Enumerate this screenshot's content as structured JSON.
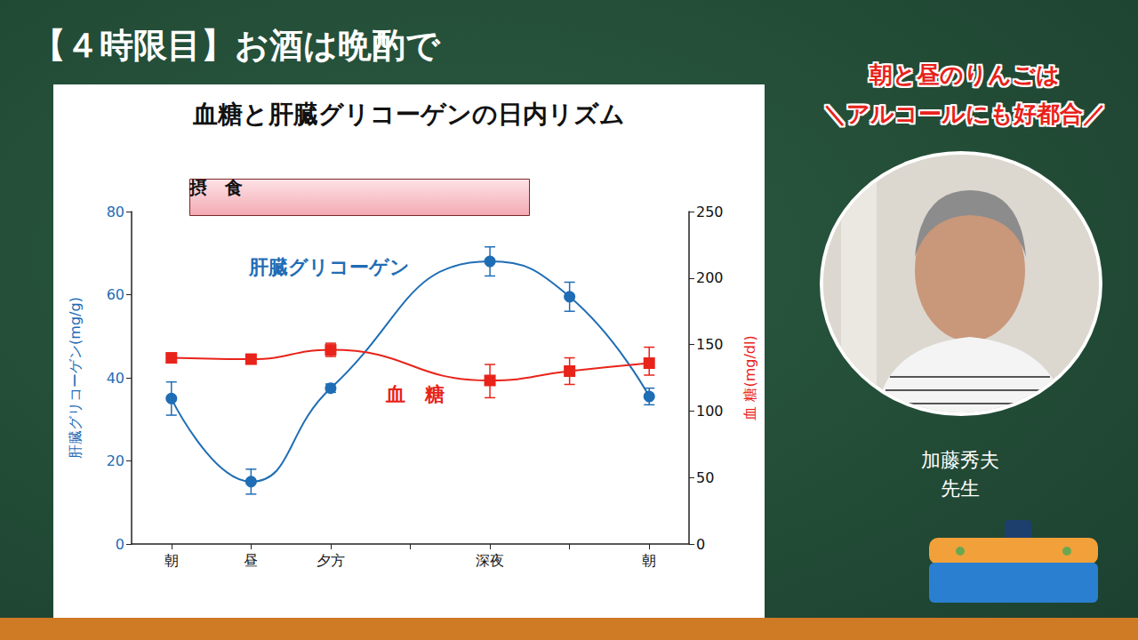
{
  "page": {
    "heading": "【４時限目】お酒は晩酌で",
    "caption": [
      "朝と昼のりんごは",
      "＼アルコールにも好都合／"
    ],
    "speaker": [
      "加藤秀夫",
      "先生"
    ]
  },
  "chart_data": {
    "type": "line",
    "title": "血糖と肝臓グリコーゲンの日内リズム",
    "annotations": [
      "摂　食"
    ],
    "categories": [
      "朝",
      "昼",
      "夕方",
      null,
      "深夜",
      null,
      "朝"
    ],
    "ylabel": "肝臓グリコーゲン(mg/g)",
    "y2label": "血 糖(mg/dl)",
    "ylim": [
      0,
      80
    ],
    "yticks": [
      0,
      20,
      40,
      60,
      80
    ],
    "y2lim": [
      0,
      250
    ],
    "y2ticks": [
      0,
      50,
      100,
      150,
      200,
      250
    ],
    "grid": false,
    "series": [
      {
        "name": "肝臓グリコーゲン",
        "color": "#1f6db5",
        "marker": "circle",
        "line_style": "solid",
        "values": [
          35,
          15,
          37.5,
          null,
          68,
          59.5,
          35.5
        ],
        "errors": [
          [
            31,
            39
          ],
          [
            12,
            18
          ],
          [
            36.5,
            38.5
          ],
          null,
          [
            64.5,
            71.5
          ],
          [
            56,
            63
          ],
          [
            33.5,
            37.5
          ]
        ]
      },
      {
        "name": "血　糖",
        "color": "#e8231a",
        "marker": "square",
        "line_style": "solid",
        "axis": "y2",
        "values": [
          140,
          139,
          146,
          null,
          123,
          130,
          136
        ],
        "errors": [
          [
            137,
            143
          ],
          [
            136,
            142
          ],
          [
            141,
            151
          ],
          null,
          [
            110,
            135
          ],
          [
            120,
            140
          ],
          [
            127,
            148
          ]
        ]
      }
    ]
  }
}
